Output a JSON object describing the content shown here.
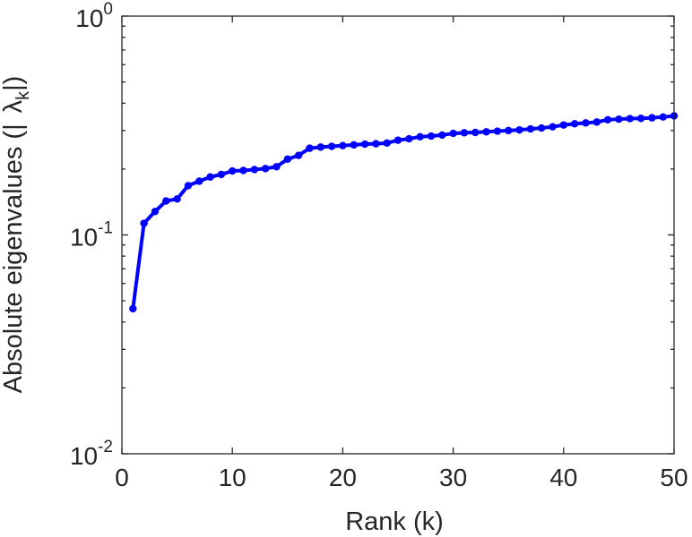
{
  "chart_data": {
    "type": "line",
    "xlabel": "Rank (k)",
    "ylabel": "Absolute eigenvalues (|λk|)",
    "ylabel_parts": {
      "main": "Absolute eigenvalues (|",
      "sym": "λ",
      "sub": "k",
      "end": "|)"
    },
    "y_scale": "log",
    "xlim": [
      0,
      50
    ],
    "ylim": [
      0.01,
      1
    ],
    "x_ticks": [
      {
        "value": 0,
        "label": "0"
      },
      {
        "value": 10,
        "label": "10"
      },
      {
        "value": 20,
        "label": "20"
      },
      {
        "value": 30,
        "label": "30"
      },
      {
        "value": 40,
        "label": "40"
      },
      {
        "value": 50,
        "label": "50"
      }
    ],
    "y_ticks": [
      {
        "value": 0.01,
        "base": "10",
        "exp": "-2"
      },
      {
        "value": 0.1,
        "base": "10",
        "exp": "-1"
      },
      {
        "value": 1,
        "base": "10",
        "exp": "0"
      }
    ],
    "grid": false,
    "series": [
      {
        "color": "#0000ff",
        "marker": "circle",
        "x": [
          1,
          2,
          3,
          4,
          5,
          6,
          7,
          8,
          9,
          10,
          11,
          12,
          13,
          14,
          15,
          16,
          17,
          18,
          19,
          20,
          21,
          22,
          23,
          24,
          25,
          26,
          27,
          28,
          29,
          30,
          31,
          32,
          33,
          34,
          35,
          36,
          37,
          38,
          39,
          40,
          41,
          42,
          43,
          44,
          45,
          46,
          47,
          48,
          49,
          50
        ],
        "y": [
          0.046,
          0.113,
          0.128,
          0.143,
          0.146,
          0.168,
          0.176,
          0.184,
          0.189,
          0.196,
          0.197,
          0.199,
          0.201,
          0.205,
          0.222,
          0.231,
          0.249,
          0.252,
          0.254,
          0.256,
          0.258,
          0.26,
          0.261,
          0.263,
          0.271,
          0.275,
          0.281,
          0.283,
          0.286,
          0.291,
          0.293,
          0.294,
          0.296,
          0.298,
          0.3,
          0.302,
          0.305,
          0.308,
          0.312,
          0.318,
          0.322,
          0.325,
          0.328,
          0.336,
          0.338,
          0.34,
          0.341,
          0.343,
          0.346,
          0.35
        ]
      }
    ]
  }
}
